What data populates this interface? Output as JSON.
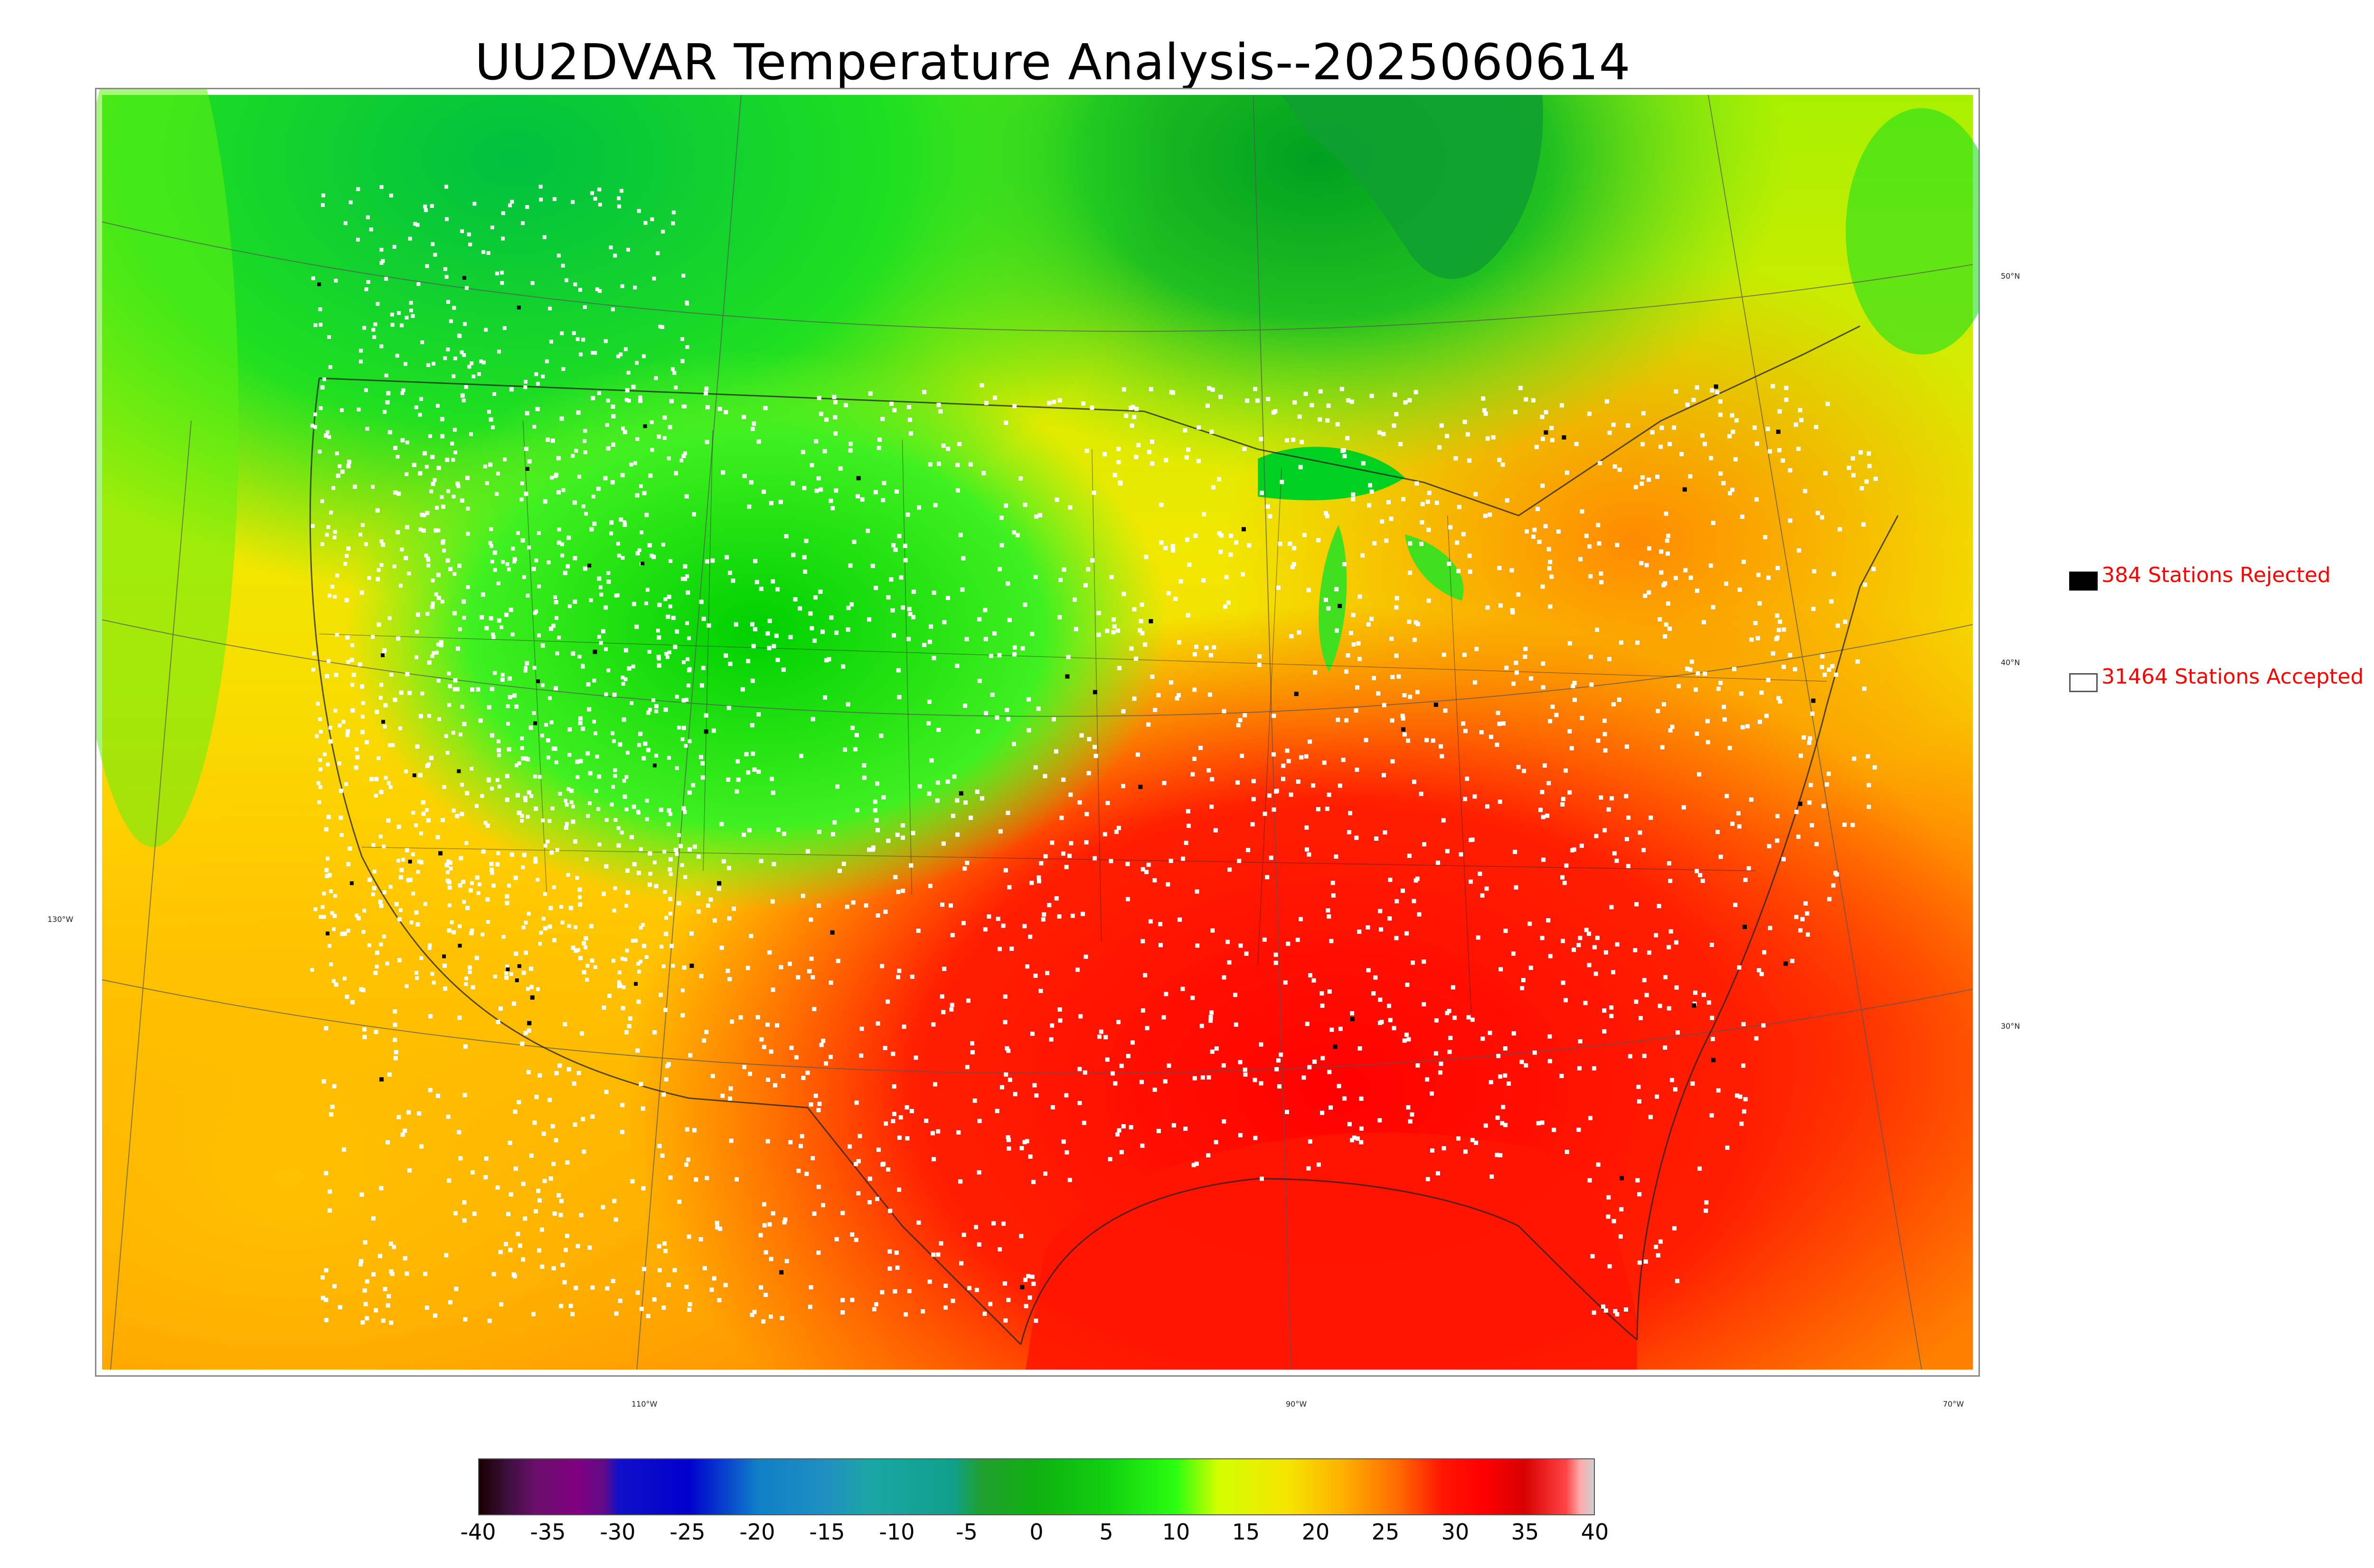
{
  "title": "UU2DVAR Temperature Analysis--2025060614",
  "map": {
    "lat_labels": [
      "50°N",
      "40°N",
      "30°N"
    ],
    "lon_labels": [
      "130°W",
      "110°W",
      "90°W",
      "70°W"
    ]
  },
  "legend": {
    "rejected": {
      "label": "384 Stations Rejected",
      "swatch_color": "#000000"
    },
    "accepted": {
      "label": "31464 Stations Accepted",
      "swatch_color": "#ffffff"
    }
  },
  "colorbar": {
    "ticks": [
      "-40",
      "-35",
      "-30",
      "-25",
      "-20",
      "-15",
      "-10",
      "-5",
      "0",
      "5",
      "10",
      "15",
      "20",
      "25",
      "30",
      "35",
      "40"
    ],
    "range": [
      -40,
      40
    ],
    "stops": [
      {
        "v": -40,
        "c": "#1a0000"
      },
      {
        "v": -38,
        "c": "#3b0f3b"
      },
      {
        "v": -36,
        "c": "#6a0f6a"
      },
      {
        "v": -33,
        "c": "#800080"
      },
      {
        "v": -31,
        "c": "#600a8a"
      },
      {
        "v": -30,
        "c": "#1010c8"
      },
      {
        "v": -25,
        "c": "#0000cd"
      },
      {
        "v": -22,
        "c": "#0a4acd"
      },
      {
        "v": -20,
        "c": "#0f7fc8"
      },
      {
        "v": -15,
        "c": "#1f90bf"
      },
      {
        "v": -12,
        "c": "#1aa6a6"
      },
      {
        "v": -6,
        "c": "#10a08a"
      },
      {
        "v": -4,
        "c": "#1fa030"
      },
      {
        "v": 0,
        "c": "#10b010"
      },
      {
        "v": 5,
        "c": "#10d010"
      },
      {
        "v": 10,
        "c": "#2aff10"
      },
      {
        "v": 13,
        "c": "#d2ff00"
      },
      {
        "v": 18,
        "c": "#f5e500"
      },
      {
        "v": 22,
        "c": "#ffb000"
      },
      {
        "v": 26,
        "c": "#ff6a00"
      },
      {
        "v": 29,
        "c": "#ff1800"
      },
      {
        "v": 32,
        "c": "#ff0000"
      },
      {
        "v": 35,
        "c": "#d80000"
      },
      {
        "v": 38,
        "c": "#ff4444"
      },
      {
        "v": 39,
        "c": "#ffaaaa"
      },
      {
        "v": 40,
        "c": "#cfcfcf"
      }
    ]
  }
}
